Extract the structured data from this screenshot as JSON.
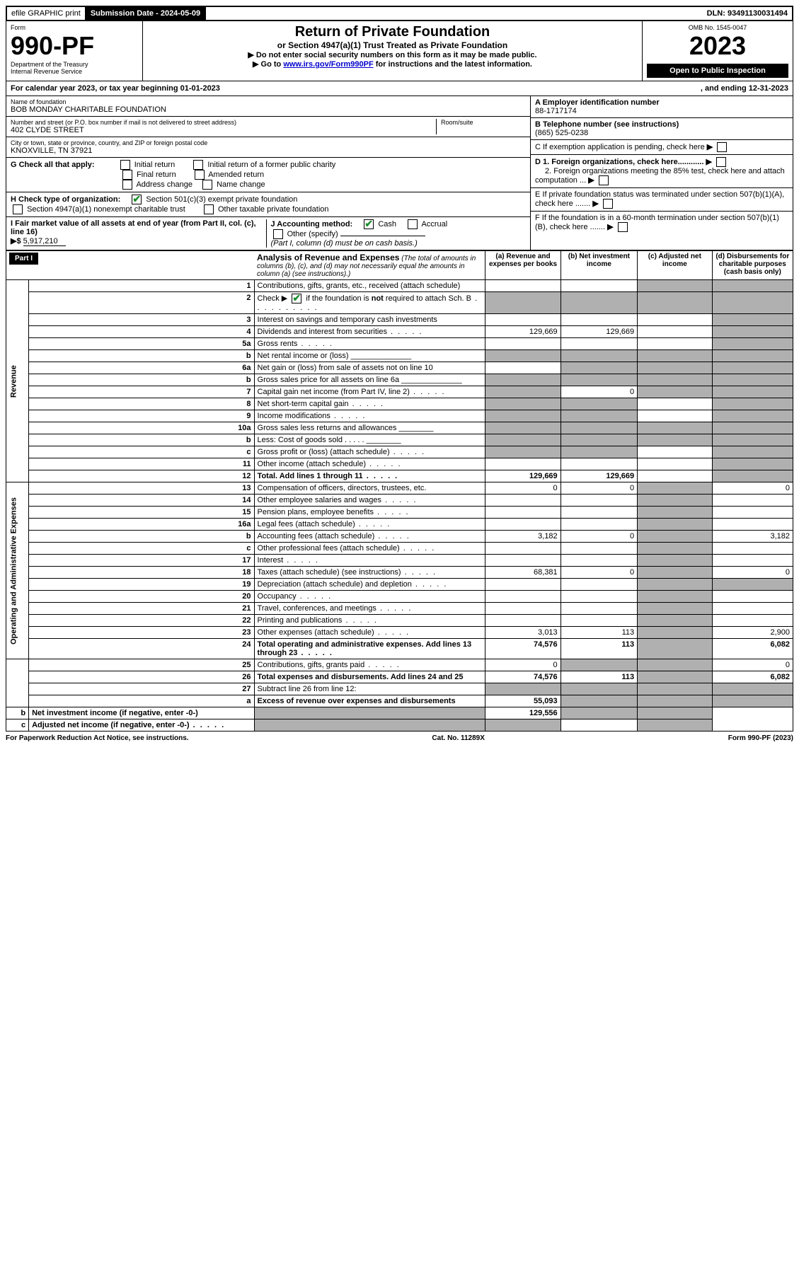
{
  "topbar": {
    "efile": "efile GRAPHIC print",
    "submission_label": "Submission Date - 2024-05-09",
    "dln_label": "DLN: 93491130031494"
  },
  "header": {
    "form_word": "Form",
    "form_no": "990-PF",
    "dept": "Department of the Treasury",
    "irs": "Internal Revenue Service",
    "title": "Return of Private Foundation",
    "subtitle": "or Section 4947(a)(1) Trust Treated as Private Foundation",
    "instr1": "▶ Do not enter social security numbers on this form as it may be made public.",
    "instr2_pre": "▶ Go to ",
    "instr2_link": "www.irs.gov/Form990PF",
    "instr2_post": " for instructions and the latest information.",
    "omb": "OMB No. 1545-0047",
    "year": "2023",
    "open": "Open to Public Inspection"
  },
  "cal_year": {
    "text": "For calendar year 2023, or tax year beginning 01-01-2023",
    "ending": ", and ending 12-31-2023"
  },
  "entity": {
    "name_label": "Name of foundation",
    "name": "BOB MONDAY CHARITABLE FOUNDATION",
    "addr_label": "Number and street (or P.O. box number if mail is not delivered to street address)",
    "addr": "402 CLYDE STREET",
    "room_label": "Room/suite",
    "city_label": "City or town, state or province, country, and ZIP or foreign postal code",
    "city": "KNOXVILLE, TN  37921",
    "ein_label": "A Employer identification number",
    "ein": "88-1717174",
    "tel_label": "B Telephone number (see instructions)",
    "tel": "(865) 525-0238",
    "c_label": "C If exemption application is pending, check here",
    "d1": "D 1. Foreign organizations, check here............",
    "d2": "2. Foreign organizations meeting the 85% test, check here and attach computation ...",
    "e": "E  If private foundation status was terminated under section 507(b)(1)(A), check here .......",
    "f": "F  If the foundation is in a 60-month termination under section 507(b)(1)(B), check here ......."
  },
  "g": {
    "label": "G Check all that apply:",
    "opts": [
      "Initial return",
      "Initial return of a former public charity",
      "Final return",
      "Amended return",
      "Address change",
      "Name change"
    ]
  },
  "h": {
    "label": "H Check type of organization:",
    "opt1": "Section 501(c)(3) exempt private foundation",
    "opt2": "Section 4947(a)(1) nonexempt charitable trust",
    "opt3": "Other taxable private foundation"
  },
  "i": {
    "label": "I Fair market value of all assets at end of year (from Part II, col. (c), line 16)",
    "arrow": "▶$",
    "value": "5,917,210"
  },
  "j": {
    "label": "J Accounting method:",
    "cash": "Cash",
    "accrual": "Accrual",
    "other": "Other (specify)",
    "note": "(Part I, column (d) must be on cash basis.)"
  },
  "part1": {
    "tag": "Part I",
    "title": "Analysis of Revenue and Expenses",
    "note": "(The total of amounts in columns (b), (c), and (d) may not necessarily equal the amounts in column (a) (see instructions).)",
    "cols": {
      "a": "(a)   Revenue and expenses per books",
      "b": "(b)   Net investment income",
      "c": "(c)   Adjusted net income",
      "d": "(d)   Disbursements for charitable purposes (cash basis only)"
    }
  },
  "sections": {
    "rev": "Revenue",
    "exp": "Operating and Administrative Expenses"
  },
  "rows": [
    {
      "n": "1",
      "d": "Contributions, gifts, grants, etc., received (attach schedule)",
      "a": "",
      "b": "",
      "c": "s",
      "dd": "s"
    },
    {
      "n": "2",
      "d": "Check ▶ ☑ if the foundation is not required to attach Sch. B",
      "a": "s",
      "b": "s",
      "c": "s",
      "dd": "s",
      "dots": true
    },
    {
      "n": "3",
      "d": "Interest on savings and temporary cash investments",
      "a": "",
      "b": "",
      "c": "",
      "dd": "s"
    },
    {
      "n": "4",
      "d": "Dividends and interest from securities",
      "a": "129,669",
      "b": "129,669",
      "c": "",
      "dd": "s",
      "dots": true
    },
    {
      "n": "5a",
      "d": "Gross rents",
      "a": "",
      "b": "",
      "c": "",
      "dd": "s",
      "dots": true
    },
    {
      "n": "b",
      "d": "Net rental income or (loss)  ______________",
      "a": "s",
      "b": "s",
      "c": "s",
      "dd": "s"
    },
    {
      "n": "6a",
      "d": "Net gain or (loss) from sale of assets not on line 10",
      "a": "",
      "b": "s",
      "c": "s",
      "dd": "s"
    },
    {
      "n": "b",
      "d": "Gross sales price for all assets on line 6a ______________",
      "a": "s",
      "b": "s",
      "c": "s",
      "dd": "s"
    },
    {
      "n": "7",
      "d": "Capital gain net income (from Part IV, line 2)",
      "a": "s",
      "b": "0",
      "c": "s",
      "dd": "s",
      "dots": true
    },
    {
      "n": "8",
      "d": "Net short-term capital gain",
      "a": "s",
      "b": "s",
      "c": "",
      "dd": "s",
      "dots": true
    },
    {
      "n": "9",
      "d": "Income modifications",
      "a": "s",
      "b": "s",
      "c": "",
      "dd": "s",
      "dots": true
    },
    {
      "n": "10a",
      "d": "Gross sales less returns and allowances  ________",
      "a": "s",
      "b": "s",
      "c": "s",
      "dd": "s"
    },
    {
      "n": "b",
      "d": "Less: Cost of goods sold      .   .   .   .   . ________",
      "a": "s",
      "b": "s",
      "c": "s",
      "dd": "s"
    },
    {
      "n": "c",
      "d": "Gross profit or (loss) (attach schedule)",
      "a": "s",
      "b": "s",
      "c": "",
      "dd": "s",
      "dots": true
    },
    {
      "n": "11",
      "d": "Other income (attach schedule)",
      "a": "",
      "b": "",
      "c": "",
      "dd": "s",
      "dots": true
    },
    {
      "n": "12",
      "d": "Total. Add lines 1 through 11",
      "a": "129,669",
      "b": "129,669",
      "c": "",
      "dd": "s",
      "bold": true,
      "dots": true
    },
    {
      "n": "13",
      "d": "Compensation of officers, directors, trustees, etc.",
      "a": "0",
      "b": "0",
      "c": "s",
      "dd": "0"
    },
    {
      "n": "14",
      "d": "Other employee salaries and wages",
      "a": "",
      "b": "",
      "c": "s",
      "dd": "",
      "dots": true
    },
    {
      "n": "15",
      "d": "Pension plans, employee benefits",
      "a": "",
      "b": "",
      "c": "s",
      "dd": "",
      "dots": true
    },
    {
      "n": "16a",
      "d": "Legal fees (attach schedule)",
      "a": "",
      "b": "",
      "c": "s",
      "dd": "",
      "dots": true
    },
    {
      "n": "b",
      "d": "Accounting fees (attach schedule)",
      "a": "3,182",
      "b": "0",
      "c": "s",
      "dd": "3,182",
      "dots": true
    },
    {
      "n": "c",
      "d": "Other professional fees (attach schedule)",
      "a": "",
      "b": "",
      "c": "s",
      "dd": "",
      "dots": true
    },
    {
      "n": "17",
      "d": "Interest",
      "a": "",
      "b": "",
      "c": "s",
      "dd": "",
      "dots": true
    },
    {
      "n": "18",
      "d": "Taxes (attach schedule) (see instructions)",
      "a": "68,381",
      "b": "0",
      "c": "s",
      "dd": "0",
      "dots": true
    },
    {
      "n": "19",
      "d": "Depreciation (attach schedule) and depletion",
      "a": "",
      "b": "",
      "c": "s",
      "dd": "s",
      "dots": true
    },
    {
      "n": "20",
      "d": "Occupancy",
      "a": "",
      "b": "",
      "c": "s",
      "dd": "",
      "dots": true
    },
    {
      "n": "21",
      "d": "Travel, conferences, and meetings",
      "a": "",
      "b": "",
      "c": "s",
      "dd": "",
      "dots": true
    },
    {
      "n": "22",
      "d": "Printing and publications",
      "a": "",
      "b": "",
      "c": "s",
      "dd": "",
      "dots": true
    },
    {
      "n": "23",
      "d": "Other expenses (attach schedule)",
      "a": "3,013",
      "b": "113",
      "c": "s",
      "dd": "2,900",
      "dots": true
    },
    {
      "n": "24",
      "d": "Total operating and administrative expenses. Add lines 13 through 23",
      "a": "74,576",
      "b": "113",
      "c": "s",
      "dd": "6,082",
      "bold": true,
      "dots": true
    },
    {
      "n": "25",
      "d": "Contributions, gifts, grants paid",
      "a": "0",
      "b": "s",
      "c": "s",
      "dd": "0",
      "dots": true
    },
    {
      "n": "26",
      "d": "Total expenses and disbursements. Add lines 24 and 25",
      "a": "74,576",
      "b": "113",
      "c": "s",
      "dd": "6,082",
      "bold": true
    },
    {
      "n": "27",
      "d": "Subtract line 26 from line 12:",
      "a": "s",
      "b": "s",
      "c": "s",
      "dd": "s"
    },
    {
      "n": "a",
      "d": "Excess of revenue over expenses and disbursements",
      "a": "55,093",
      "b": "s",
      "c": "s",
      "dd": "s",
      "bold": true
    },
    {
      "n": "b",
      "d": "Net investment income (if negative, enter -0-)",
      "a": "s",
      "b": "129,556",
      "c": "s",
      "dd": "s",
      "bold": true
    },
    {
      "n": "c",
      "d": "Adjusted net income (if negative, enter -0-)",
      "a": "s",
      "b": "s",
      "c": "",
      "dd": "s",
      "bold": true,
      "dots": true
    }
  ],
  "footer": {
    "left": "For Paperwork Reduction Act Notice, see instructions.",
    "mid": "Cat. No. 11289X",
    "right": "Form 990-PF (2023)"
  }
}
